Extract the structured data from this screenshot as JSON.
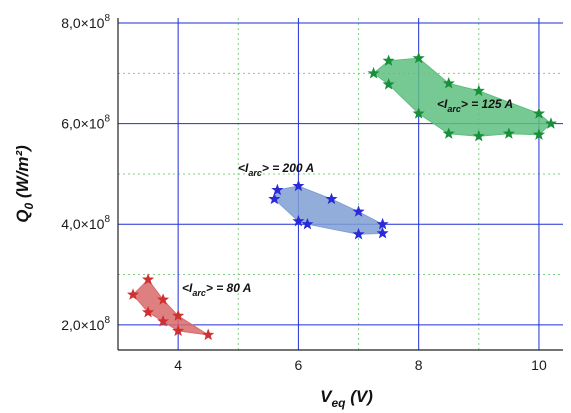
{
  "chart_data": {
    "type": "scatter",
    "title": "",
    "xlabel": {
      "main": "V",
      "sub": "eq",
      "unit": " (V)"
    },
    "ylabel": {
      "main": "Q",
      "sub": "0",
      "unit": " (W/m²)"
    },
    "xlim": [
      3,
      10.4
    ],
    "ylim": [
      150000000,
      810000000
    ],
    "xticks": [
      4,
      6,
      8,
      10
    ],
    "yticks": [
      200000000,
      400000000,
      600000000,
      800000000
    ],
    "ytick_labels": [
      "2,0×10",
      "4,0×10",
      "6,0×10",
      "8,0×10"
    ],
    "ytick_exponent": "8",
    "grid": {
      "major": "solid",
      "minor": "dotted"
    },
    "series": [
      {
        "color": "#d03030",
        "fill": "#d96a6a",
        "annotation": {
          "prefix": "<I",
          "sub": "arc",
          "suffix": "> = 80 A"
        },
        "points": [
          [
            3.25,
            260000000
          ],
          [
            3.5,
            290000000
          ],
          [
            3.5,
            225000000
          ],
          [
            3.75,
            250000000
          ],
          [
            3.75,
            207000000
          ],
          [
            4.0,
            218000000
          ],
          [
            4.0,
            188000000
          ],
          [
            4.5,
            180000000
          ]
        ],
        "outline": [
          [
            3.25,
            260000000
          ],
          [
            3.5,
            290000000
          ],
          [
            3.75,
            250000000
          ],
          [
            4.0,
            218000000
          ],
          [
            4.5,
            180000000
          ],
          [
            4.0,
            188000000
          ],
          [
            3.75,
            207000000
          ],
          [
            3.5,
            225000000
          ]
        ]
      },
      {
        "color": "#2a2ad8",
        "fill": "#7f9fd3",
        "annotation": {
          "prefix": "<I",
          "sub": "arc",
          "suffix": "> = 200 A"
        },
        "points": [
          [
            5.6,
            450000000
          ],
          [
            5.65,
            468000000
          ],
          [
            6.0,
            476000000
          ],
          [
            6.0,
            406000000
          ],
          [
            6.15,
            400000000
          ],
          [
            6.55,
            450000000
          ],
          [
            7.0,
            425000000
          ],
          [
            7.0,
            380000000
          ],
          [
            7.4,
            400000000
          ],
          [
            7.4,
            382000000
          ]
        ],
        "outline": [
          [
            5.6,
            450000000
          ],
          [
            5.65,
            468000000
          ],
          [
            6.0,
            476000000
          ],
          [
            6.55,
            450000000
          ],
          [
            7.0,
            425000000
          ],
          [
            7.4,
            400000000
          ],
          [
            7.4,
            382000000
          ],
          [
            7.0,
            380000000
          ],
          [
            6.15,
            400000000
          ],
          [
            6.0,
            406000000
          ]
        ]
      },
      {
        "color": "#1a8f3a",
        "fill": "#5fbf80",
        "annotation": {
          "prefix": "<I",
          "sub": "arc",
          "suffix": "> = 125 A"
        },
        "points": [
          [
            7.25,
            700000000
          ],
          [
            7.5,
            725000000
          ],
          [
            7.5,
            678000000
          ],
          [
            8.0,
            730000000
          ],
          [
            8.0,
            620000000
          ],
          [
            8.5,
            680000000
          ],
          [
            9.0,
            665000000
          ],
          [
            8.5,
            580000000
          ],
          [
            9.0,
            575000000
          ],
          [
            9.5,
            580000000
          ],
          [
            10.0,
            620000000
          ],
          [
            10.0,
            578000000
          ],
          [
            10.2,
            600000000
          ]
        ],
        "outline": [
          [
            7.25,
            700000000
          ],
          [
            7.5,
            725000000
          ],
          [
            8.0,
            730000000
          ],
          [
            8.5,
            680000000
          ],
          [
            9.0,
            665000000
          ],
          [
            10.0,
            620000000
          ],
          [
            10.2,
            600000000
          ],
          [
            10.0,
            578000000
          ],
          [
            9.5,
            580000000
          ],
          [
            9.0,
            575000000
          ],
          [
            8.5,
            580000000
          ],
          [
            8.0,
            620000000
          ],
          [
            7.5,
            678000000
          ]
        ]
      }
    ]
  }
}
